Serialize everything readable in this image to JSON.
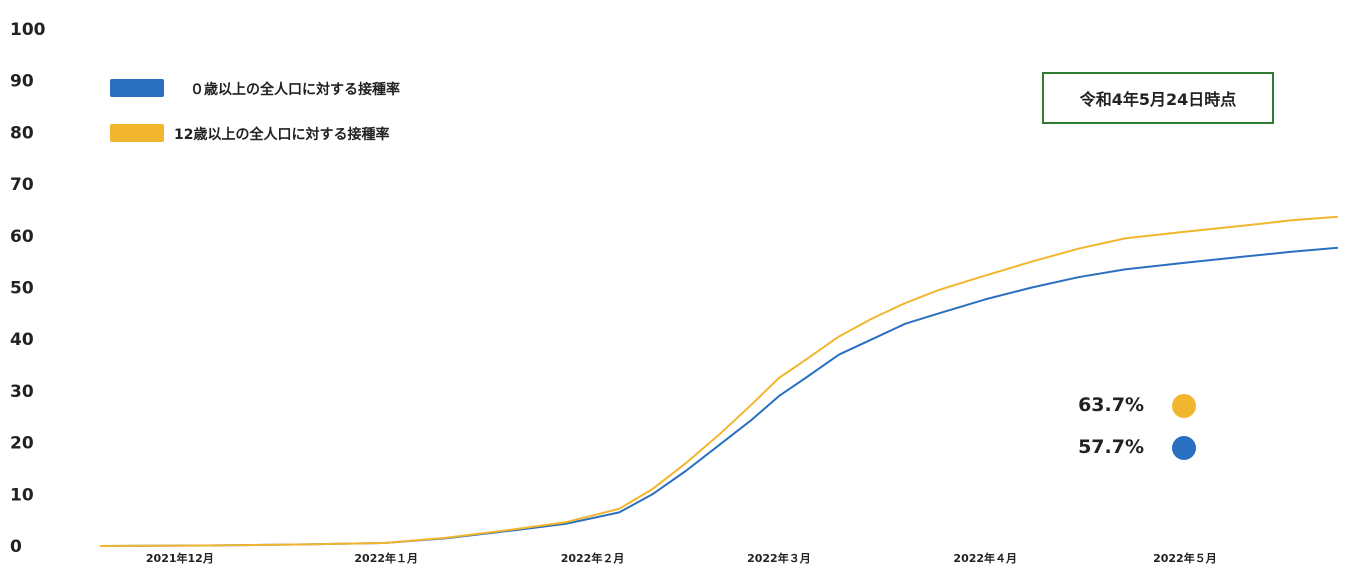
{
  "colors": {
    "series_all": "#2a6fc0",
    "series_12": "#f2b62e",
    "asof_border": "#2e7d32",
    "text": "#222222"
  },
  "legend": {
    "all_label": "０歳以上の全人口に対する接種率",
    "age12_label": "12歳以上の全人口に対する接種率"
  },
  "as_of": "令和4年5月24日時点",
  "latest": {
    "age12_value": "63.7%",
    "all_value": "57.7%"
  },
  "chart_data": {
    "type": "line",
    "title": "",
    "xlabel": "",
    "ylabel": "",
    "ylim": [
      0,
      100
    ],
    "yticks": [
      0,
      10,
      20,
      30,
      40,
      50,
      60,
      70,
      80,
      90,
      100
    ],
    "xticks": [
      {
        "x": "2021-12-01",
        "label": "2021年12月"
      },
      {
        "x": "2022-01-01",
        "label": "2022年１月"
      },
      {
        "x": "2022-02-01",
        "label": "2022年２月"
      },
      {
        "x": "2022-03-01",
        "label": "2022年３月"
      },
      {
        "x": "2022-04-01",
        "label": "2022年４月"
      },
      {
        "x": "2022-05-01",
        "label": "2022年５月"
      }
    ],
    "xlim": [
      "2021-11-19",
      "2022-05-24"
    ],
    "legend": "top-left",
    "grid": false,
    "series": [
      {
        "name": "０歳以上の全人口に対する接種率",
        "points": [
          [
            "2021-11-19",
            0.0
          ],
          [
            "2021-12-05",
            0.1
          ],
          [
            "2021-12-20",
            0.3
          ],
          [
            "2022-01-01",
            0.6
          ],
          [
            "2022-01-10",
            1.5
          ],
          [
            "2022-01-20",
            3.0
          ],
          [
            "2022-01-28",
            4.3
          ],
          [
            "2022-02-05",
            6.5
          ],
          [
            "2022-02-10",
            10.0
          ],
          [
            "2022-02-15",
            14.5
          ],
          [
            "2022-02-20",
            19.5
          ],
          [
            "2022-02-25",
            24.5
          ],
          [
            "2022-03-01",
            29.0
          ],
          [
            "2022-03-05",
            32.5
          ],
          [
            "2022-03-10",
            37.0
          ],
          [
            "2022-03-15",
            40.0
          ],
          [
            "2022-03-20",
            43.0
          ],
          [
            "2022-03-25",
            45.0
          ],
          [
            "2022-04-01",
            47.7
          ],
          [
            "2022-04-08",
            50.0
          ],
          [
            "2022-04-15",
            52.0
          ],
          [
            "2022-04-22",
            53.5
          ],
          [
            "2022-05-01",
            54.8
          ],
          [
            "2022-05-10",
            56.0
          ],
          [
            "2022-05-17",
            56.9
          ],
          [
            "2022-05-24",
            57.7
          ]
        ]
      },
      {
        "name": "12歳以上の全人口に対する接種率",
        "points": [
          [
            "2021-11-19",
            0.0
          ],
          [
            "2021-12-05",
            0.1
          ],
          [
            "2021-12-20",
            0.3
          ],
          [
            "2022-01-01",
            0.6
          ],
          [
            "2022-01-10",
            1.6
          ],
          [
            "2022-01-20",
            3.2
          ],
          [
            "2022-01-28",
            4.6
          ],
          [
            "2022-02-05",
            7.2
          ],
          [
            "2022-02-10",
            11.0
          ],
          [
            "2022-02-15",
            16.0
          ],
          [
            "2022-02-20",
            21.5
          ],
          [
            "2022-02-25",
            27.5
          ],
          [
            "2022-03-01",
            32.5
          ],
          [
            "2022-03-05",
            36.0
          ],
          [
            "2022-03-10",
            40.5
          ],
          [
            "2022-03-15",
            44.0
          ],
          [
            "2022-03-20",
            47.0
          ],
          [
            "2022-03-25",
            49.5
          ],
          [
            "2022-04-01",
            52.3
          ],
          [
            "2022-04-08",
            55.0
          ],
          [
            "2022-04-15",
            57.5
          ],
          [
            "2022-04-22",
            59.5
          ],
          [
            "2022-05-01",
            60.8
          ],
          [
            "2022-05-10",
            62.0
          ],
          [
            "2022-05-17",
            63.0
          ],
          [
            "2022-05-24",
            63.7
          ]
        ]
      }
    ]
  }
}
